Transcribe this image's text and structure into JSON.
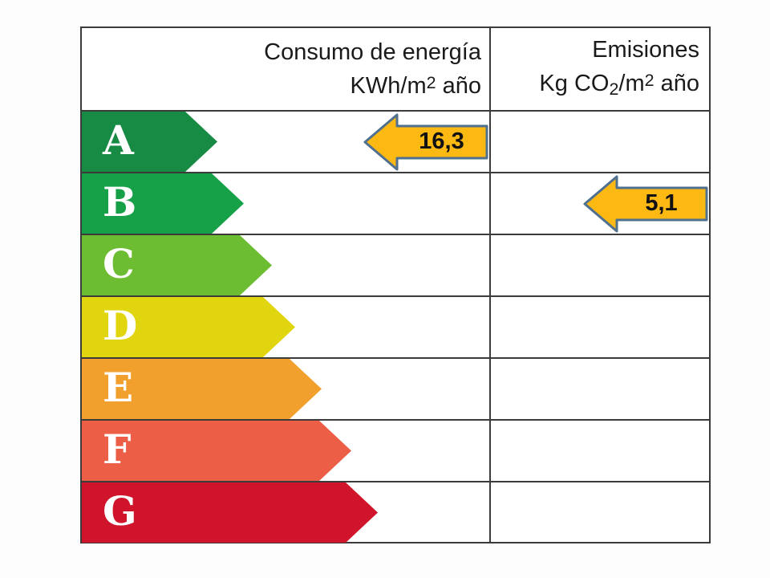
{
  "chart_data": {
    "type": "table",
    "columns": [
      "Consumo de energía KWh/m2 año",
      "Emisiones Kg CO2/m2 año"
    ],
    "rating_scale": [
      "A",
      "B",
      "C",
      "D",
      "E",
      "F",
      "G"
    ],
    "consumption": {
      "value": 16.3,
      "display": "16,3",
      "rating_row": "A"
    },
    "emissions": {
      "value": 5.1,
      "display": "5,1",
      "rating_row": "B"
    },
    "legend_position": "none",
    "grid": "on"
  },
  "header": {
    "consumption_line1": "Consumo de energía",
    "consumption_line2_pre": "KWh/m",
    "consumption_line2_sup": "2",
    "consumption_line2_post": " año",
    "emissions_line1": "Emisiones",
    "emissions_line2_pre": "Kg CO",
    "emissions_line2_sub": "2",
    "emissions_line2_mid": "/m",
    "emissions_line2_sup": "2",
    "emissions_line2_post": " año"
  },
  "ratings": [
    {
      "letter": "A",
      "color": "#178a43",
      "arrow_tip": 169
    },
    {
      "letter": "B",
      "color": "#16a149",
      "arrow_tip": 202
    },
    {
      "letter": "C",
      "color": "#6cbd31",
      "arrow_tip": 237
    },
    {
      "letter": "D",
      "color": "#e0d50f",
      "arrow_tip": 266
    },
    {
      "letter": "E",
      "color": "#f2a02d",
      "arrow_tip": 299
    },
    {
      "letter": "F",
      "color": "#ec5e45",
      "arrow_tip": 336
    },
    {
      "letter": "G",
      "color": "#d0142c",
      "arrow_tip": 369
    }
  ],
  "values": {
    "consumption": "16,3",
    "emissions": "5,1"
  },
  "colors": {
    "value_arrow_fill": "#fcb813",
    "value_arrow_border": "#50708f",
    "grid": "#3b3b3b",
    "letter_text": "#ffffff",
    "header_text": "#1a1a1a"
  }
}
